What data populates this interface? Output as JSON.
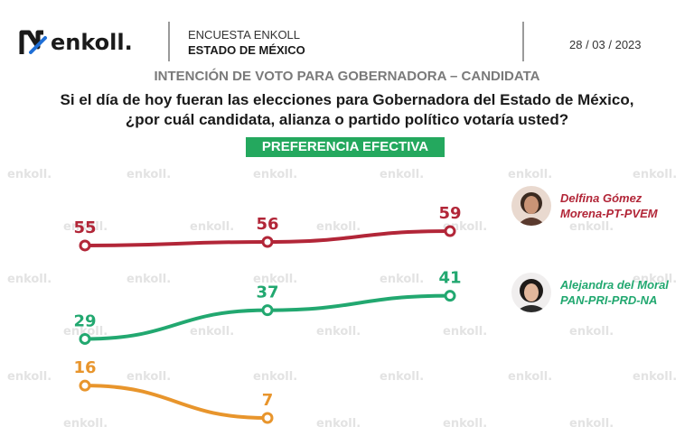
{
  "header": {
    "logo_text": "enkoll.",
    "survey_name": "ENCUESTA ENKOLL",
    "state": "ESTADO DE MÉXICO",
    "date": "28 / 03 / 2023"
  },
  "subtitle": "INTENCIÓN DE VOTO PARA GOBERNADORA – CANDIDATA",
  "question_line1": "Si el día de hoy fueran las elecciones para Gobernadora del Estado de México,",
  "question_line2": "¿por cuál candidata, alianza o partido político votaría usted?",
  "badge": "PREFERENCIA EFECTIVA",
  "watermark_text": "enkoll.",
  "colors": {
    "delfina": "#b22638",
    "alejandra": "#22a870",
    "other": "#e8952c",
    "badge": "#24a85e"
  },
  "candidates": {
    "delfina": {
      "name": "Delfina Gómez",
      "party": "Morena-PT-PVEM"
    },
    "alejandra": {
      "name": "Alejandra del Moral",
      "party": "PAN-PRI-PRD-NA"
    }
  },
  "chart_data": {
    "type": "line",
    "title": "",
    "xlabel": "",
    "ylabel": "",
    "grid": false,
    "legend": "right",
    "x": [
      1,
      2,
      3
    ],
    "series": [
      {
        "name": "Delfina Gómez Morena-PT-PVEM",
        "values": [
          55,
          56,
          59
        ],
        "color": "#b22638"
      },
      {
        "name": "Alejandra del Moral PAN-PRI-PRD-NA",
        "values": [
          29,
          37,
          41
        ],
        "color": "#22a870"
      },
      {
        "values": [
          16,
          7,
          null
        ],
        "color": "#e8952c"
      }
    ]
  }
}
